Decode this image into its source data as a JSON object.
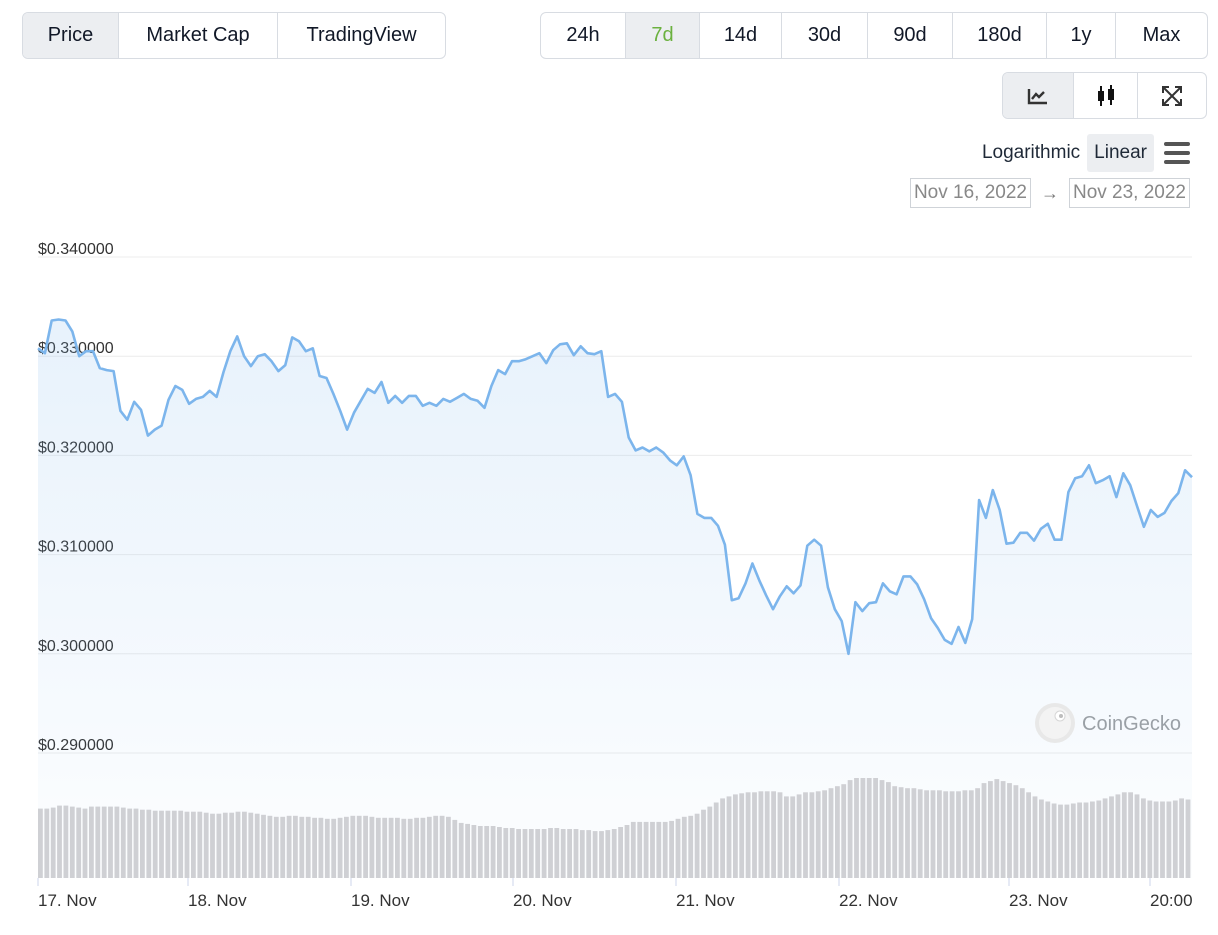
{
  "metric_tabs": [
    {
      "label": "Price",
      "active": true
    },
    {
      "label": "Market Cap",
      "active": false
    },
    {
      "label": "TradingView",
      "active": false
    }
  ],
  "range_tabs": [
    {
      "label": "24h",
      "active": false
    },
    {
      "label": "7d",
      "active": true
    },
    {
      "label": "14d",
      "active": false
    },
    {
      "label": "30d",
      "active": false
    },
    {
      "label": "90d",
      "active": false
    },
    {
      "label": "180d",
      "active": false
    },
    {
      "label": "1y",
      "active": false
    },
    {
      "label": "Max",
      "active": false
    }
  ],
  "view_tabs": [
    {
      "icon": "line-chart-icon",
      "active": true
    },
    {
      "icon": "candlestick-icon",
      "active": false
    },
    {
      "icon": "fullscreen-icon",
      "active": false
    }
  ],
  "scale": {
    "options": [
      "Logarithmic",
      "Linear"
    ],
    "selected": "Linear"
  },
  "date_range": {
    "from": "Nov 16, 2022",
    "to": "Nov 23, 2022",
    "arrow": "→"
  },
  "watermark": "CoinGecko",
  "colors": {
    "line": "#7cb5ec",
    "volume": "#cfd0d4",
    "active_green": "#6bb13f"
  },
  "chart_data": {
    "type": "line",
    "ylim": [
      0.285,
      0.342
    ],
    "y_ticks": [
      0.34,
      0.33,
      0.32,
      0.31,
      0.3,
      0.29
    ],
    "y_tick_labels": [
      "$0.340000",
      "$0.330000",
      "$0.320000",
      "$0.310000",
      "$0.300000",
      "$0.290000"
    ],
    "x_tick_labels": [
      "17. Nov",
      "18. Nov",
      "19. Nov",
      "20. Nov",
      "21. Nov",
      "22. Nov",
      "23. Nov",
      "20:00"
    ],
    "grid": true,
    "price": [
      0.3308,
      0.3303,
      0.3336,
      0.3337,
      0.3336,
      0.3325,
      0.33,
      0.3305,
      0.3305,
      0.3288,
      0.3286,
      0.3285,
      0.3245,
      0.3236,
      0.3254,
      0.3246,
      0.322,
      0.3226,
      0.323,
      0.3256,
      0.327,
      0.3266,
      0.3252,
      0.3257,
      0.3259,
      0.3265,
      0.3259,
      0.3284,
      0.3305,
      0.332,
      0.33,
      0.329,
      0.33,
      0.3302,
      0.3295,
      0.3285,
      0.3291,
      0.3319,
      0.3315,
      0.3305,
      0.3308,
      0.328,
      0.3278,
      0.3262,
      0.3245,
      0.3226,
      0.3243,
      0.3255,
      0.3267,
      0.3263,
      0.3274,
      0.3253,
      0.326,
      0.3253,
      0.326,
      0.326,
      0.325,
      0.3253,
      0.325,
      0.3257,
      0.3254,
      0.3258,
      0.3262,
      0.3257,
      0.3255,
      0.3248,
      0.327,
      0.3286,
      0.3282,
      0.3295,
      0.3295,
      0.3297,
      0.33,
      0.3303,
      0.3293,
      0.3306,
      0.3312,
      0.3313,
      0.3301,
      0.331,
      0.3303,
      0.3302,
      0.3305,
      0.3259,
      0.3262,
      0.3254,
      0.3218,
      0.3205,
      0.3208,
      0.3204,
      0.3208,
      0.3203,
      0.3195,
      0.319,
      0.3199,
      0.318,
      0.3141,
      0.3137,
      0.3137,
      0.3129,
      0.311,
      0.3054,
      0.3056,
      0.3071,
      0.3091,
      0.3074,
      0.3059,
      0.3045,
      0.3058,
      0.3068,
      0.3061,
      0.3069,
      0.3109,
      0.3115,
      0.3109,
      0.3067,
      0.3045,
      0.3033,
      0.3,
      0.3052,
      0.3043,
      0.3051,
      0.3052,
      0.3071,
      0.3063,
      0.306,
      0.3078,
      0.3078,
      0.307,
      0.3055,
      0.3036,
      0.3026,
      0.3014,
      0.301,
      0.3027,
      0.3011,
      0.3035,
      0.3155,
      0.3137,
      0.3165,
      0.3145,
      0.3111,
      0.3112,
      0.3122,
      0.3122,
      0.3114,
      0.3126,
      0.3131,
      0.3115,
      0.3115,
      0.3163,
      0.3177,
      0.3179,
      0.319,
      0.3172,
      0.3175,
      0.3179,
      0.3158,
      0.3182,
      0.317,
      0.3149,
      0.3128,
      0.3145,
      0.3138,
      0.3142,
      0.3154,
      0.3162,
      0.3185,
      0.3178
    ],
    "volume_relative": [
      0.68,
      0.68,
      0.69,
      0.71,
      0.71,
      0.7,
      0.69,
      0.68,
      0.7,
      0.7,
      0.7,
      0.7,
      0.7,
      0.69,
      0.68,
      0.68,
      0.67,
      0.67,
      0.66,
      0.66,
      0.66,
      0.66,
      0.66,
      0.65,
      0.65,
      0.65,
      0.64,
      0.63,
      0.63,
      0.64,
      0.64,
      0.65,
      0.65,
      0.64,
      0.63,
      0.62,
      0.61,
      0.6,
      0.6,
      0.61,
      0.61,
      0.6,
      0.6,
      0.59,
      0.59,
      0.58,
      0.58,
      0.59,
      0.6,
      0.61,
      0.61,
      0.61,
      0.6,
      0.59,
      0.59,
      0.59,
      0.59,
      0.58,
      0.58,
      0.59,
      0.59,
      0.6,
      0.61,
      0.61,
      0.6,
      0.57,
      0.54,
      0.53,
      0.52,
      0.51,
      0.51,
      0.51,
      0.5,
      0.49,
      0.49,
      0.48,
      0.48,
      0.48,
      0.48,
      0.48,
      0.49,
      0.49,
      0.48,
      0.48,
      0.48,
      0.47,
      0.47,
      0.46,
      0.46,
      0.47,
      0.48,
      0.5,
      0.52,
      0.55,
      0.55,
      0.55,
      0.55,
      0.55,
      0.55,
      0.56,
      0.58,
      0.6,
      0.61,
      0.63,
      0.67,
      0.7,
      0.74,
      0.78,
      0.8,
      0.82,
      0.83,
      0.84,
      0.84,
      0.85,
      0.85,
      0.85,
      0.84,
      0.8,
      0.8,
      0.82,
      0.84,
      0.84,
      0.85,
      0.86,
      0.88,
      0.9,
      0.92,
      0.96,
      0.98,
      0.98,
      0.98,
      0.98,
      0.96,
      0.94,
      0.9,
      0.89,
      0.88,
      0.88,
      0.87,
      0.86,
      0.86,
      0.86,
      0.85,
      0.85,
      0.85,
      0.86,
      0.86,
      0.88,
      0.93,
      0.95,
      0.97,
      0.95,
      0.93,
      0.91,
      0.88,
      0.84,
      0.8,
      0.77,
      0.75,
      0.73,
      0.72,
      0.72,
      0.73,
      0.74,
      0.74,
      0.75,
      0.76,
      0.78,
      0.8,
      0.82,
      0.84,
      0.84,
      0.82,
      0.78,
      0.76,
      0.75,
      0.75,
      0.75,
      0.76,
      0.78,
      0.77
    ]
  }
}
